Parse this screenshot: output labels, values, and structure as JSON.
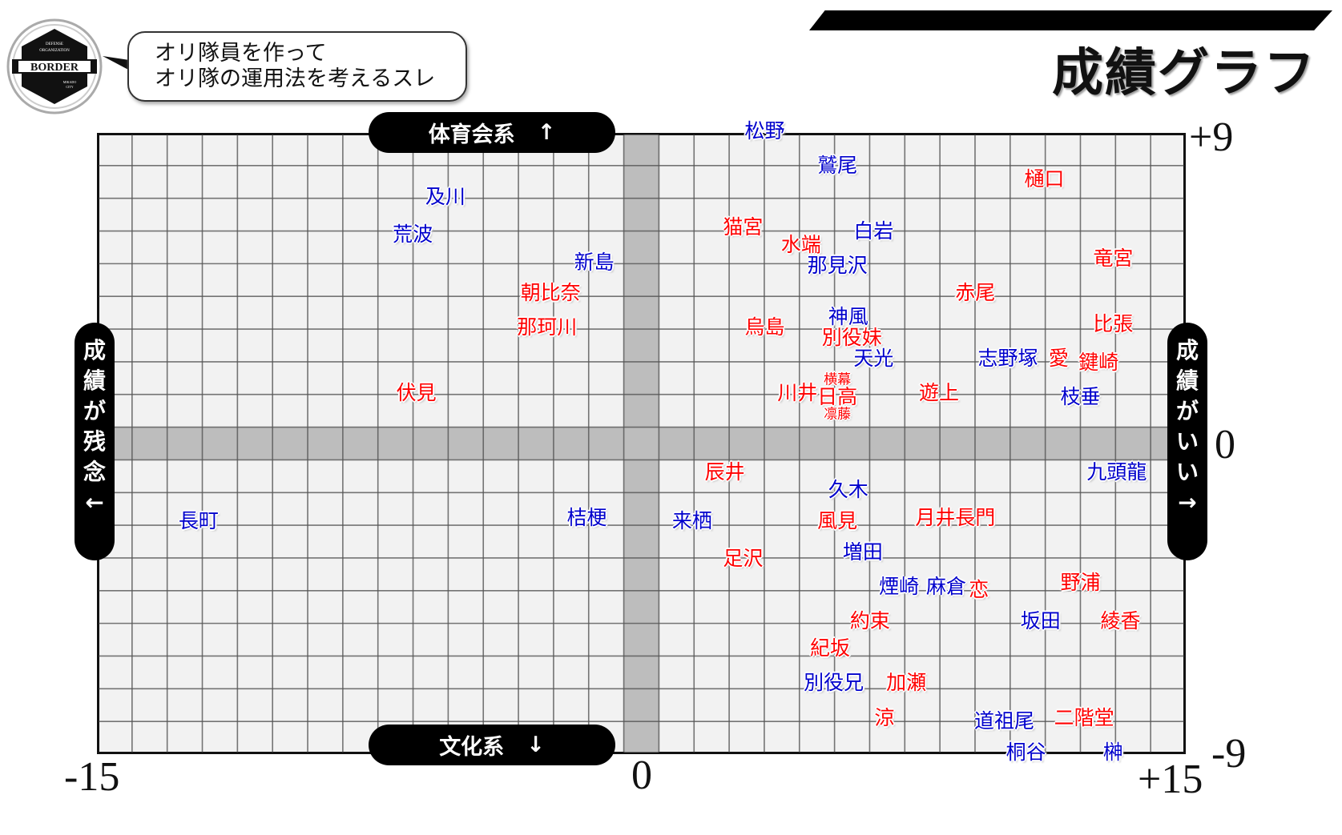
{
  "header": {
    "title": "成績グラフ",
    "bubble_lines": [
      "オリ隊員を作って",
      "オリ隊の運用法を考えるスレ"
    ],
    "logo_text": [
      "DEFENSE",
      "ORGANIZATION",
      "BORDER",
      "MIKADO",
      "CITY"
    ]
  },
  "axis_pills": {
    "top": "体育会系",
    "top_arrow": "↑",
    "bottom": "文化系",
    "bottom_arrow": "↓",
    "left": [
      "成",
      "績",
      "が",
      "残",
      "念",
      "←"
    ],
    "right": [
      "成",
      "績",
      "が",
      "い",
      "い",
      "→"
    ]
  },
  "colors": {
    "red_team": "#ff0000",
    "blue_team": "#0000cc",
    "band": "#bdbdbd",
    "grid_bg": "#f2f2f2"
  },
  "chart_data": {
    "type": "scatter",
    "title": "成績グラフ",
    "xlim": [
      -15,
      15
    ],
    "ylim": [
      -9,
      9
    ],
    "x_ticks": [
      "-15",
      "0",
      "+15"
    ],
    "y_ticks": [
      "+9",
      "0",
      "-9"
    ],
    "grid": true,
    "points": [
      {
        "label": "松野",
        "x": 3.4,
        "y": 9.1,
        "color": "blue"
      },
      {
        "label": "鷲尾",
        "x": 5.4,
        "y": 8.1,
        "color": "blue"
      },
      {
        "label": "樋口",
        "x": 11.1,
        "y": 7.7,
        "color": "red"
      },
      {
        "label": "及川",
        "x": -5.4,
        "y": 7.2,
        "color": "blue"
      },
      {
        "label": "荒波",
        "x": -6.3,
        "y": 6.1,
        "color": "blue"
      },
      {
        "label": "猫宮",
        "x": 2.8,
        "y": 6.3,
        "color": "red"
      },
      {
        "label": "水端",
        "x": 4.4,
        "y": 5.8,
        "color": "red"
      },
      {
        "label": "白岩",
        "x": 6.4,
        "y": 6.2,
        "color": "blue"
      },
      {
        "label": "新島",
        "x": -1.3,
        "y": 5.3,
        "color": "blue"
      },
      {
        "label": "那見沢",
        "x": 5.4,
        "y": 5.2,
        "color": "blue"
      },
      {
        "label": "竜宮",
        "x": 13.0,
        "y": 5.4,
        "color": "red"
      },
      {
        "label": "朝比奈",
        "x": -2.5,
        "y": 4.4,
        "color": "red"
      },
      {
        "label": "赤尾",
        "x": 9.2,
        "y": 4.4,
        "color": "red"
      },
      {
        "label": "那珂川",
        "x": -2.6,
        "y": 3.4,
        "color": "red"
      },
      {
        "label": "烏島",
        "x": 3.4,
        "y": 3.4,
        "color": "red"
      },
      {
        "label": "神風",
        "x": 5.7,
        "y": 3.7,
        "color": "blue"
      },
      {
        "label": "別役妹",
        "x": 5.8,
        "y": 3.1,
        "color": "red"
      },
      {
        "label": "比張",
        "x": 13.0,
        "y": 3.5,
        "color": "red"
      },
      {
        "label": "天光",
        "x": 6.4,
        "y": 2.5,
        "color": "blue"
      },
      {
        "label": "志野塚",
        "x": 10.1,
        "y": 2.5,
        "color": "blue"
      },
      {
        "label": "愛",
        "x": 11.5,
        "y": 2.5,
        "color": "red"
      },
      {
        "label": "鍵崎",
        "x": 12.6,
        "y": 2.4,
        "color": "red"
      },
      {
        "label": "伏見",
        "x": -6.2,
        "y": 1.5,
        "color": "red"
      },
      {
        "label": "横幕",
        "x": 5.4,
        "y": 1.9,
        "color": "red",
        "small": true
      },
      {
        "label": "川井",
        "x": 4.3,
        "y": 1.5,
        "color": "red"
      },
      {
        "label": "日高",
        "x": 5.4,
        "y": 1.4,
        "color": "red"
      },
      {
        "label": "凛藤",
        "x": 5.4,
        "y": 0.9,
        "color": "red",
        "small": true
      },
      {
        "label": "遊上",
        "x": 8.2,
        "y": 1.5,
        "color": "red"
      },
      {
        "label": "枝垂",
        "x": 12.1,
        "y": 1.4,
        "color": "blue"
      },
      {
        "label": "辰井",
        "x": 2.3,
        "y": -0.8,
        "color": "red"
      },
      {
        "label": "九頭龍",
        "x": 13.1,
        "y": -0.8,
        "color": "blue"
      },
      {
        "label": "久木",
        "x": 5.7,
        "y": -1.3,
        "color": "blue"
      },
      {
        "label": "長町",
        "x": -12.2,
        "y": -2.2,
        "color": "blue"
      },
      {
        "label": "桔梗",
        "x": -1.5,
        "y": -2.1,
        "color": "blue"
      },
      {
        "label": "来栖",
        "x": 1.4,
        "y": -2.2,
        "color": "blue"
      },
      {
        "label": "風見",
        "x": 5.4,
        "y": -2.2,
        "color": "red"
      },
      {
        "label": "月井",
        "x": 8.1,
        "y": -2.1,
        "color": "red"
      },
      {
        "label": "長門",
        "x": 9.2,
        "y": -2.1,
        "color": "red"
      },
      {
        "label": "足沢",
        "x": 2.8,
        "y": -3.3,
        "color": "red"
      },
      {
        "label": "増田",
        "x": 6.1,
        "y": -3.1,
        "color": "blue"
      },
      {
        "label": "煙崎",
        "x": 7.1,
        "y": -4.1,
        "color": "blue"
      },
      {
        "label": "麻倉",
        "x": 8.4,
        "y": -4.1,
        "color": "blue"
      },
      {
        "label": "恋",
        "x": 9.3,
        "y": -4.2,
        "color": "red"
      },
      {
        "label": "野浦",
        "x": 12.1,
        "y": -4.0,
        "color": "red"
      },
      {
        "label": "約束",
        "x": 6.3,
        "y": -5.1,
        "color": "red"
      },
      {
        "label": "坂田",
        "x": 11.0,
        "y": -5.1,
        "color": "blue"
      },
      {
        "label": "綾香",
        "x": 13.2,
        "y": -5.1,
        "color": "red"
      },
      {
        "label": "紀坂",
        "x": 5.2,
        "y": -5.9,
        "color": "red"
      },
      {
        "label": "別役兄",
        "x": 5.3,
        "y": -6.9,
        "color": "blue"
      },
      {
        "label": "加瀬",
        "x": 7.3,
        "y": -6.9,
        "color": "red"
      },
      {
        "label": "涼",
        "x": 6.7,
        "y": -7.9,
        "color": "red"
      },
      {
        "label": "道祖尾",
        "x": 10.0,
        "y": -8.0,
        "color": "blue"
      },
      {
        "label": "二階堂",
        "x": 12.2,
        "y": -7.9,
        "color": "red"
      },
      {
        "label": "桐谷",
        "x": 10.6,
        "y": -8.9,
        "color": "blue"
      },
      {
        "label": "榊",
        "x": 13.0,
        "y": -8.9,
        "color": "blue"
      }
    ]
  }
}
